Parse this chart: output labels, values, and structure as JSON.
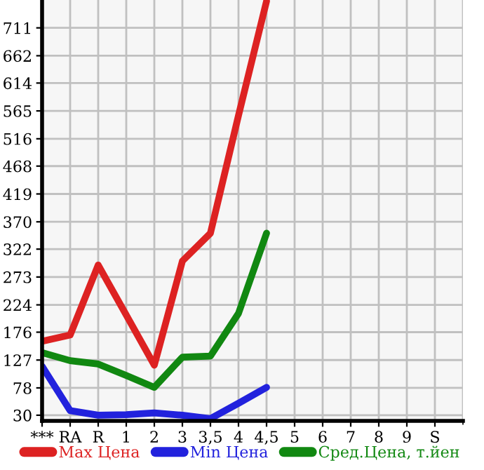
{
  "chart_data": {
    "type": "line",
    "categories": [
      "***",
      "RA",
      "R",
      "1",
      "2",
      "3",
      "3,5",
      "4",
      "4,5",
      "5",
      "6",
      "7",
      "8",
      "9",
      "S"
    ],
    "series": [
      {
        "name": "Max Цена",
        "color": "#dd2222",
        "values": [
          160,
          171,
          294,
          206,
          118,
          301,
          350,
          557,
          758,
          null,
          null,
          null,
          null,
          null,
          null
        ]
      },
      {
        "name": "Min Цена",
        "color": "#2222dd",
        "values": [
          116,
          38,
          30,
          31,
          34,
          30,
          24,
          51,
          79,
          null,
          null,
          null,
          null,
          null,
          null
        ]
      },
      {
        "name": "Сред.Цена, т.йен",
        "color": "#118811",
        "values": [
          140,
          126,
          120,
          100,
          79,
          132,
          134,
          209,
          350,
          null,
          null,
          null,
          null,
          null,
          null
        ]
      }
    ],
    "ylim": [
      20,
      760
    ],
    "yticks": [
      30,
      78,
      127,
      176,
      224,
      273,
      322,
      370,
      419,
      468,
      516,
      565,
      614,
      662,
      711
    ],
    "grid": true,
    "legend": "bottom",
    "marker": "none",
    "line_style": "solid"
  }
}
